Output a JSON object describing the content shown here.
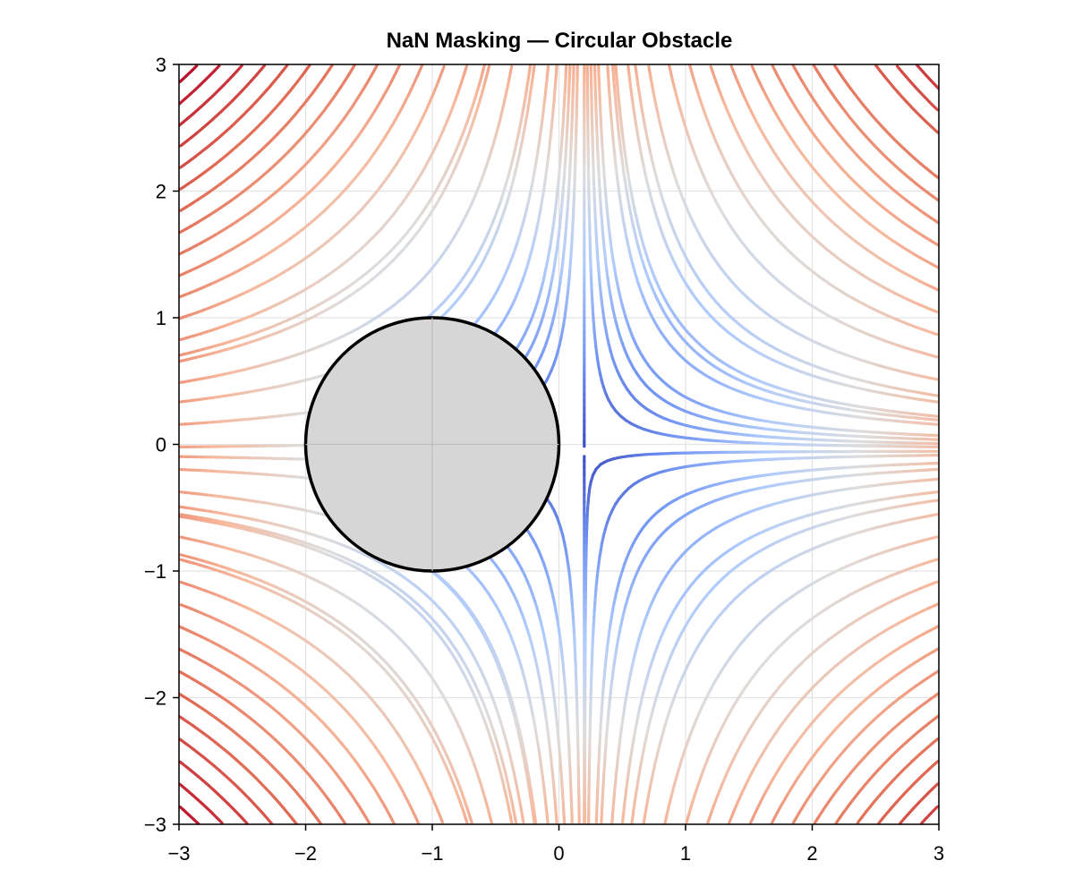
{
  "chart_data": {
    "type": "streamplot",
    "title": "NaN Masking — Circular Obstacle",
    "xlabel": "",
    "ylabel": "",
    "xlim": [
      -3,
      3
    ],
    "ylim": [
      -3,
      3
    ],
    "xticks": [
      {
        "value": -3,
        "label": "−3"
      },
      {
        "value": -2,
        "label": "−2"
      },
      {
        "value": -1,
        "label": "−1"
      },
      {
        "value": 0,
        "label": "0"
      },
      {
        "value": 1,
        "label": "1"
      },
      {
        "value": 2,
        "label": "2"
      },
      {
        "value": 3,
        "label": "3"
      }
    ],
    "yticks": [
      {
        "value": -3,
        "label": "−3"
      },
      {
        "value": -2,
        "label": "−2"
      },
      {
        "value": -1,
        "label": "−1"
      },
      {
        "value": 0,
        "label": "0"
      },
      {
        "value": 1,
        "label": "1"
      },
      {
        "value": 2,
        "label": "2"
      },
      {
        "value": 3,
        "label": "3"
      }
    ],
    "grid": true,
    "colormap": "coolwarm",
    "colormap_colors": [
      "#3b4cc0",
      "#7396f5",
      "#b0cbfc",
      "#dddddd",
      "#f7b89c",
      "#e36c54",
      "#b40426"
    ],
    "saddle_point": [
      0.2,
      -0.05
    ],
    "obstacle": {
      "center": [
        -1,
        0
      ],
      "radius": 1,
      "fill": "#d6d6d6",
      "edge": "#000000"
    },
    "field": "streamlines of a hyperbolic (saddle) flow, masked inside the circle"
  }
}
